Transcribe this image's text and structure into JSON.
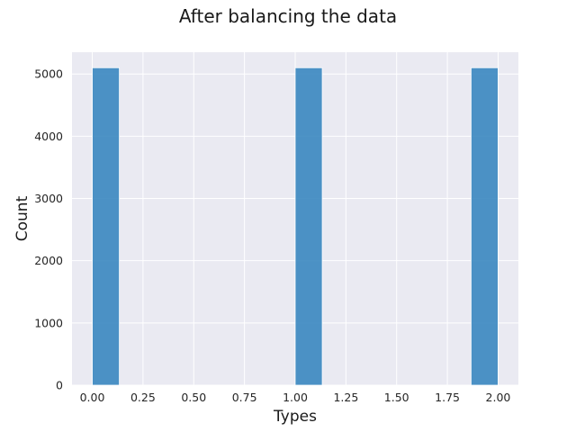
{
  "chart_data": {
    "type": "bar",
    "title": "After balancing the data",
    "xlabel": "Types",
    "ylabel": "Count",
    "xlim": [
      -0.1,
      2.1
    ],
    "ylim": [
      0,
      5350
    ],
    "xticks": [
      "0.00",
      "0.25",
      "0.50",
      "0.75",
      "1.00",
      "1.25",
      "1.50",
      "1.75",
      "2.00"
    ],
    "yticks": [
      "0",
      "1000",
      "2000",
      "3000",
      "4000",
      "5000"
    ],
    "bar_color": "#3a87c0",
    "background_color": "#eaeaf2",
    "grid": true,
    "bins": [
      {
        "x0": 0.0,
        "x1": 0.1333,
        "value": 5100
      },
      {
        "x0": 1.0,
        "x1": 1.1333,
        "value": 5100
      },
      {
        "x0": 1.8667,
        "x1": 2.0,
        "value": 5100
      }
    ]
  }
}
